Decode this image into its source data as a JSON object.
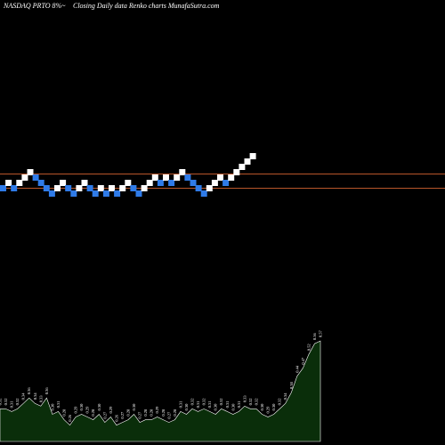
{
  "header": {
    "symbol_text": "NASDAQ PRTO 8%~",
    "title_text": "Closing Daily data  Renko  charts MunafaSutra.com"
  },
  "colors": {
    "background": "#000000",
    "up_brick": "#ffffff",
    "down_brick": "#2f7be8",
    "reference_line": "#b8562a",
    "volume_fill": "#0a2e0a",
    "volume_outline": "#ffffff"
  },
  "chart_data": [
    {
      "type": "renko",
      "title": "",
      "xlabel": "",
      "ylabel": "",
      "grid": false,
      "reference_lines": [
        2,
        0
      ],
      "bricks": [
        {
          "dir": "down",
          "level": 0
        },
        {
          "dir": "up",
          "level": 1
        },
        {
          "dir": "down",
          "level": 0
        },
        {
          "dir": "up",
          "level": 1
        },
        {
          "dir": "up",
          "level": 2
        },
        {
          "dir": "up",
          "level": 3
        },
        {
          "dir": "down",
          "level": 2
        },
        {
          "dir": "down",
          "level": 1
        },
        {
          "dir": "down",
          "level": 0
        },
        {
          "dir": "down",
          "level": -1
        },
        {
          "dir": "up",
          "level": 0
        },
        {
          "dir": "up",
          "level": 1
        },
        {
          "dir": "down",
          "level": 0
        },
        {
          "dir": "down",
          "level": -1
        },
        {
          "dir": "up",
          "level": 0
        },
        {
          "dir": "up",
          "level": 1
        },
        {
          "dir": "down",
          "level": 0
        },
        {
          "dir": "down",
          "level": -1
        },
        {
          "dir": "up",
          "level": 0
        },
        {
          "dir": "down",
          "level": -1
        },
        {
          "dir": "up",
          "level": 0
        },
        {
          "dir": "down",
          "level": -1
        },
        {
          "dir": "up",
          "level": 0
        },
        {
          "dir": "up",
          "level": 1
        },
        {
          "dir": "down",
          "level": 0
        },
        {
          "dir": "down",
          "level": -1
        },
        {
          "dir": "up",
          "level": 0
        },
        {
          "dir": "up",
          "level": 1
        },
        {
          "dir": "up",
          "level": 2
        },
        {
          "dir": "down",
          "level": 1
        },
        {
          "dir": "up",
          "level": 2
        },
        {
          "dir": "down",
          "level": 1
        },
        {
          "dir": "up",
          "level": 2
        },
        {
          "dir": "up",
          "level": 3
        },
        {
          "dir": "down",
          "level": 2
        },
        {
          "dir": "down",
          "level": 1
        },
        {
          "dir": "down",
          "level": 0
        },
        {
          "dir": "down",
          "level": -1
        },
        {
          "dir": "up",
          "level": 0
        },
        {
          "dir": "up",
          "level": 1
        },
        {
          "dir": "up",
          "level": 2
        },
        {
          "dir": "down",
          "level": 1
        },
        {
          "dir": "up",
          "level": 2
        },
        {
          "dir": "up",
          "level": 3
        },
        {
          "dir": "up",
          "level": 4
        },
        {
          "dir": "up",
          "level": 5
        },
        {
          "dir": "up",
          "level": 6
        }
      ]
    },
    {
      "type": "area",
      "title": "",
      "series": [
        {
          "values": [
            0.32,
            0.32,
            0.31,
            0.32,
            0.34,
            0.36,
            0.34,
            0.33,
            0.36,
            0.3,
            0.31,
            0.28,
            0.26,
            0.29,
            0.3,
            0.29,
            0.28,
            0.3,
            0.27,
            0.29,
            0.26,
            0.27,
            0.28,
            0.3,
            0.27,
            0.28,
            0.28,
            0.29,
            0.28,
            0.27,
            0.28,
            0.31,
            0.3,
            0.32,
            0.31,
            0.32,
            0.31,
            0.3,
            0.32,
            0.31,
            0.3,
            0.31,
            0.33,
            0.32,
            0.32,
            0.3,
            0.29,
            0.3,
            0.32,
            0.34,
            0.38,
            0.44,
            0.47,
            0.52,
            0.56,
            0.57
          ],
          "labels": [
            "0.32",
            "0.32",
            "0.31",
            "0.32",
            "0.34",
            "0.36",
            "0.34",
            "0.33",
            "0.36",
            "0.30",
            "0.31",
            "0.28",
            "0.26",
            "0.29",
            "0.30",
            "0.29",
            "0.28",
            "0.30",
            "0.27",
            "0.29",
            "0.26",
            "0.27",
            "0.28",
            "0.30",
            "0.27",
            "0.28",
            "0.28",
            "0.29",
            "0.28",
            "0.27",
            "0.28",
            "0.31",
            "0.30",
            "0.32",
            "0.31",
            "0.32",
            "0.31",
            "0.30",
            "0.32",
            "0.31",
            "0.30",
            "0.31",
            "0.33",
            "0.32",
            "0.32",
            "0.30",
            "0.29",
            "0.30",
            "0.32",
            "0.34",
            "0.38",
            "0.44",
            "0.47",
            "0.52",
            "0.56",
            "0.57"
          ]
        }
      ]
    }
  ]
}
